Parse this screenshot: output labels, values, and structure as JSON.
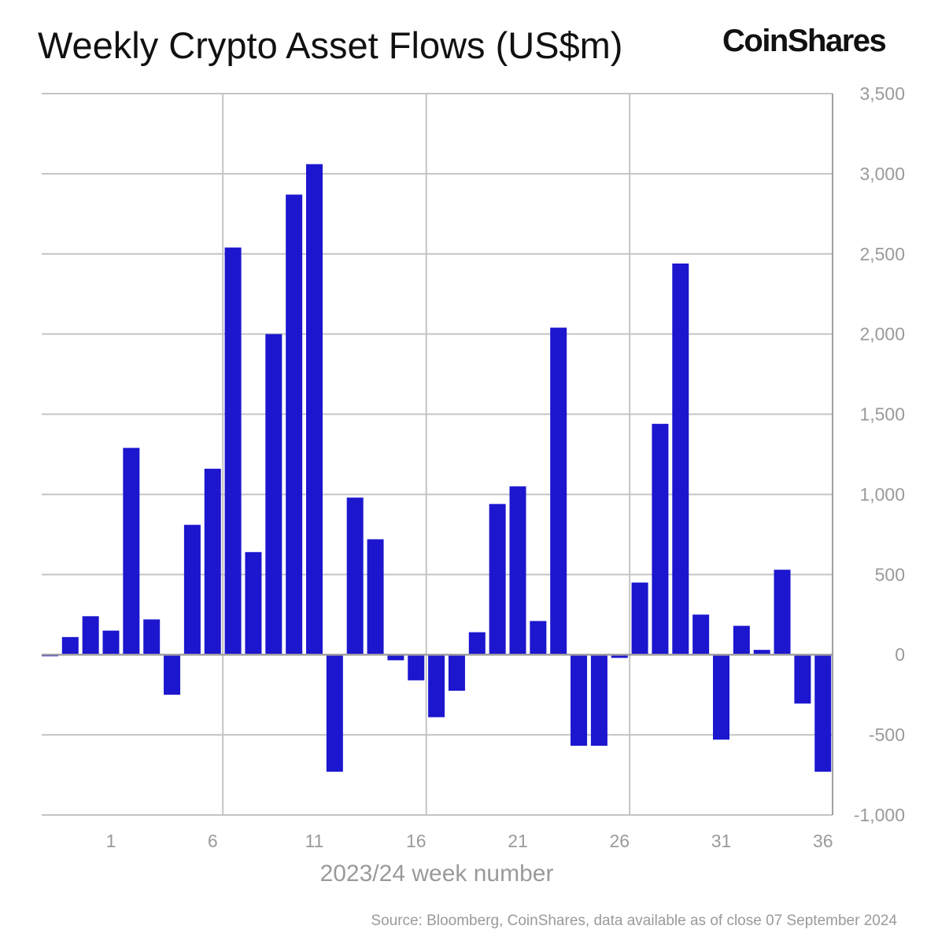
{
  "header": {
    "title": "Weekly Crypto Asset Flows (US$m)",
    "logo": "CoinShares"
  },
  "footer": {
    "source": "Source: Bloomberg, CoinShares, data available as of close 07 September 2024"
  },
  "colors": {
    "bar": "#1c16cf",
    "grid": "#c4c4c4",
    "text": "#9a9a9a"
  },
  "chart_data": {
    "type": "bar",
    "title": "Weekly Crypto Asset Flows (US$m)",
    "xlabel": "2023/24 week number",
    "ylabel": "",
    "x": [
      -2,
      -1,
      0,
      1,
      2,
      3,
      4,
      5,
      6,
      7,
      8,
      9,
      10,
      11,
      12,
      13,
      14,
      15,
      16,
      17,
      18,
      19,
      20,
      21,
      22,
      23,
      24,
      25,
      26,
      27,
      28,
      29,
      30,
      31,
      32,
      33,
      34,
      35,
      36
    ],
    "values": [
      -10,
      110,
      240,
      150,
      1290,
      220,
      -250,
      810,
      1160,
      2540,
      640,
      2000,
      2870,
      3060,
      -730,
      980,
      720,
      -35,
      -160,
      -390,
      -225,
      140,
      940,
      1050,
      210,
      2040,
      -568,
      -568,
      -20,
      450,
      1440,
      2440,
      250,
      -530,
      180,
      30,
      530,
      -305,
      -730
    ],
    "x_ticks": [
      "1",
      "6",
      "11",
      "16",
      "21",
      "26",
      "31",
      "36"
    ],
    "x_tick_values": [
      1,
      6,
      11,
      16,
      21,
      26,
      31,
      36
    ],
    "y_ticks": [
      "-1,000",
      "-500",
      "0",
      "500",
      "1,000",
      "1,500",
      "2,000",
      "2,500",
      "3,000",
      "3,500"
    ],
    "y_tick_values": [
      -1000,
      -500,
      0,
      500,
      1000,
      1500,
      2000,
      2500,
      3000,
      3500
    ],
    "ylim": [
      -1000,
      3500
    ],
    "grid": true,
    "y_axis_side": "right"
  }
}
